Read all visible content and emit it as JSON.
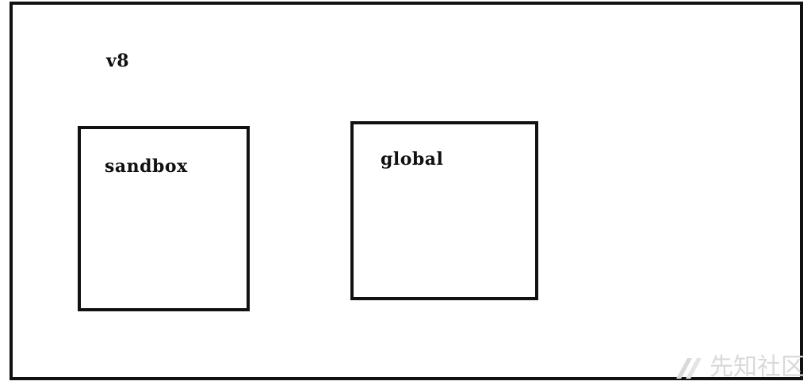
{
  "diagram": {
    "outer_label": "v8",
    "boxes": [
      {
        "label": "sandbox"
      },
      {
        "label": "global"
      }
    ]
  },
  "watermark": {
    "text": "先知社区",
    "logo_icon": "xianzhi-logo-icon"
  },
  "colors": {
    "stroke": "#111111",
    "background": "#ffffff",
    "watermark": "#d9d9d9"
  }
}
